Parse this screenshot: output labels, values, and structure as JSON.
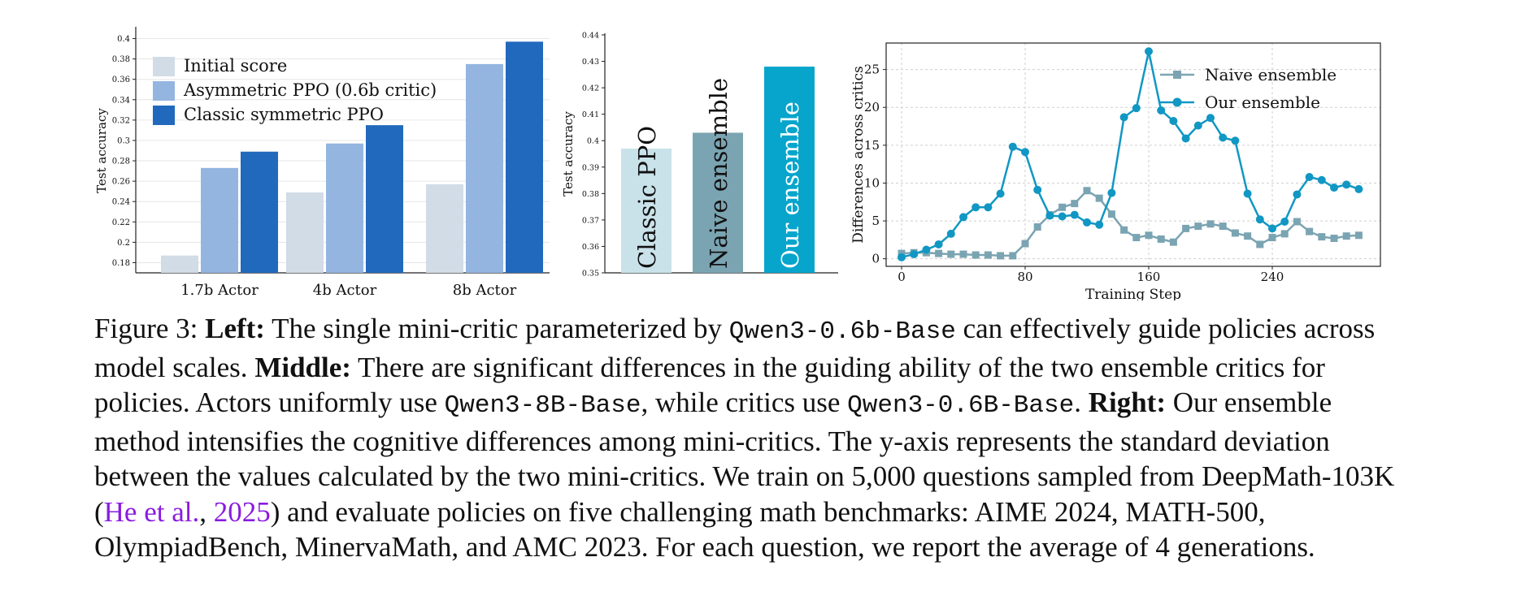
{
  "chart_data": [
    {
      "type": "bar",
      "panel": "left",
      "ylabel": "Test accuracy",
      "ylim": [
        0.17,
        0.41
      ],
      "yticks": [
        0.18,
        0.2,
        0.22,
        0.24,
        0.26,
        0.28,
        0.3,
        0.32,
        0.34,
        0.36,
        0.38,
        0.4
      ],
      "ytick_labels": [
        "0.18",
        "0.2",
        "0.22",
        "0.24",
        "0.26",
        "0.28",
        "0.3",
        "0.32",
        "0.34",
        "0.36",
        "0.38",
        "0.4"
      ],
      "categories": [
        "1.7b Actor",
        "4b Actor",
        "8b Actor"
      ],
      "series": [
        {
          "name": "Initial score",
          "color": "#d1dce6",
          "values": [
            0.187,
            0.249,
            0.257
          ]
        },
        {
          "name": "Asymmetric PPO (0.6b critic)",
          "color": "#94b5e0",
          "values": [
            0.273,
            0.297,
            0.375
          ]
        },
        {
          "name": "Classic symmetric PPO",
          "color": "#2169bd",
          "values": [
            0.289,
            0.315,
            0.397
          ]
        }
      ],
      "legend_position": "top-left"
    },
    {
      "type": "bar",
      "panel": "middle",
      "ylabel": "Test accuracy",
      "ylim": [
        0.35,
        0.44
      ],
      "yticks": [
        0.35,
        0.36,
        0.37,
        0.38,
        0.39,
        0.4,
        0.41,
        0.42,
        0.43,
        0.44
      ],
      "ytick_labels": [
        "0.35",
        "0.36",
        "0.37",
        "0.38",
        "0.39",
        "0.4",
        "0.41",
        "0.42",
        "0.43",
        "0.44"
      ],
      "categories": [
        "Classic PPO",
        "Naive ensemble",
        "Our ensemble"
      ],
      "values": [
        0.397,
        0.403,
        0.428
      ],
      "colors": [
        "#c9e2ea",
        "#7ba4b2",
        "#07a5cc"
      ]
    },
    {
      "type": "line",
      "panel": "right",
      "xlabel": "Training Step",
      "ylabel": "Differences across critics",
      "xlim": [
        -10,
        310
      ],
      "ylim": [
        -1,
        28.5
      ],
      "xticks": [
        0,
        80,
        160,
        240
      ],
      "xtick_labels": [
        "0",
        "80",
        "160",
        "240"
      ],
      "yticks": [
        0,
        5,
        10,
        15,
        20,
        25
      ],
      "ytick_labels": [
        "0",
        "5",
        "10",
        "15",
        "20",
        "25"
      ],
      "grid": true,
      "legend_position": "top-right",
      "x": [
        0,
        8,
        16,
        24,
        32,
        40,
        48,
        56,
        64,
        72,
        80,
        88,
        96,
        104,
        112,
        120,
        128,
        136,
        144,
        152,
        160,
        168,
        176,
        184,
        192,
        200,
        208,
        216,
        224,
        232,
        240,
        248,
        256,
        264,
        272,
        280,
        288,
        296
      ],
      "series": [
        {
          "name": "Naive ensemble",
          "color": "#7ba4b2",
          "marker": "square",
          "values": [
            0.7,
            0.8,
            0.8,
            0.7,
            0.6,
            0.6,
            0.5,
            0.5,
            0.4,
            0.4,
            2.0,
            4.2,
            5.8,
            6.8,
            7.3,
            9.0,
            8.0,
            5.9,
            3.8,
            2.8,
            3.1,
            2.6,
            2.2,
            4.0,
            4.3,
            4.6,
            4.3,
            3.4,
            3.0,
            1.9,
            2.8,
            3.3,
            4.9,
            3.6,
            2.9,
            2.7,
            3.0,
            3.1
          ]
        },
        {
          "name": "Our ensemble",
          "color": "#1197c3",
          "marker": "circle",
          "values": [
            0.2,
            0.6,
            1.2,
            1.9,
            3.3,
            5.5,
            6.8,
            6.8,
            8.6,
            14.8,
            14.1,
            9.1,
            5.7,
            5.6,
            5.8,
            4.8,
            4.5,
            8.7,
            18.7,
            19.9,
            27.4,
            19.6,
            18.2,
            15.9,
            17.6,
            18.6,
            16.0,
            15.6,
            8.6,
            5.2,
            4.0,
            4.9,
            8.5,
            10.8,
            10.4,
            9.4,
            9.8,
            9.2
          ]
        }
      ]
    }
  ],
  "caption": {
    "figure_label": "Figure 3:",
    "left_label": "Left:",
    "left_text_1": " The single mini-critic parameterized by ",
    "left_code": "Qwen3-0.6b-Base",
    "left_text_2": " can effectively guide policies across model scales.",
    "middle_label": "Middle:",
    "middle_text_1": " There are significant differences in the guiding ability of the two ensemble critics for policies. Actors uniformly use ",
    "middle_code_1": "Qwen3-8B-Base",
    "middle_text_2": ", while critics use ",
    "middle_code_2": "Qwen3-0.6B-Base",
    "middle_text_3": ".",
    "right_label": "Right:",
    "right_text_1": " Our ensemble method intensifies the cognitive differences among mini-critics. The y-axis represents the standard deviation between the values calculated by the two mini-critics. We train on 5,000 questions sampled from DeepMath-103K (",
    "cite_author": "He et al.",
    "cite_sep": ", ",
    "cite_year": "2025",
    "right_text_2": ") and evaluate policies on five challenging math benchmarks: AIME 2024, MATH-500, OlympiadBench, MinervaMath, and AMC 2023. For each question, we report the average of 4 generations."
  }
}
